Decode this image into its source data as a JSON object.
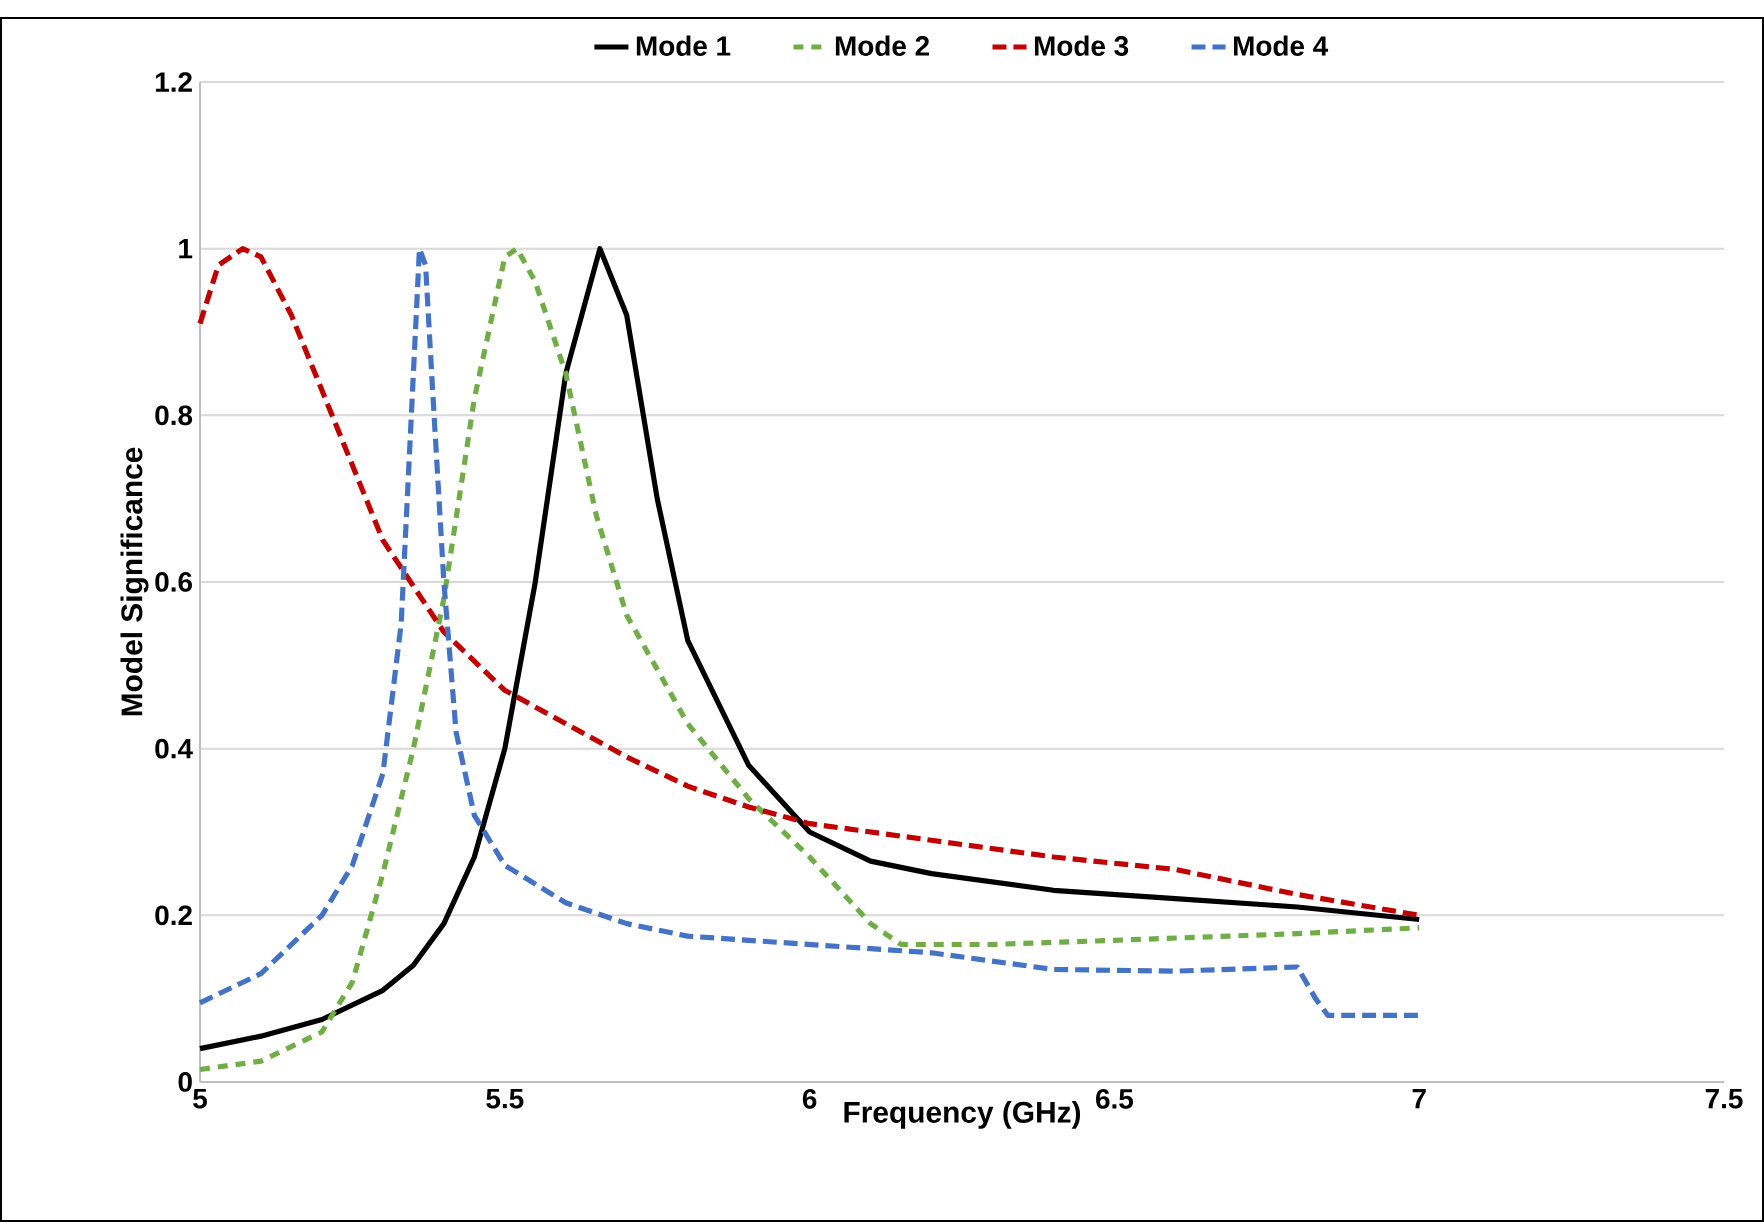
{
  "chart_data": {
    "type": "line",
    "xlabel": "Frequency (GHz)",
    "ylabel": "Model Significance",
    "xlim": [
      5,
      7.5
    ],
    "ylim": [
      0,
      1.2
    ],
    "xticks": [
      5,
      5.5,
      6,
      6.5,
      7,
      7.5
    ],
    "yticks": [
      0,
      0.2,
      0.4,
      0.6,
      0.8,
      1,
      1.2
    ],
    "grid": "y",
    "legend": "top",
    "marker": "none",
    "series": [
      {
        "name": "Mode 1",
        "color": "#000000",
        "line_style": "solid",
        "x": [
          5,
          5.1,
          5.2,
          5.3,
          5.35,
          5.4,
          5.45,
          5.5,
          5.55,
          5.6,
          5.656,
          5.7,
          5.75,
          5.8,
          5.9,
          6.0,
          6.1,
          6.2,
          6.4,
          6.6,
          6.8,
          7
        ],
        "values": [
          0.04,
          0.055,
          0.075,
          0.11,
          0.14,
          0.19,
          0.27,
          0.4,
          0.6,
          0.85,
          1.0,
          0.92,
          0.7,
          0.53,
          0.38,
          0.3,
          0.265,
          0.25,
          0.23,
          0.22,
          0.21,
          0.195
        ]
      },
      {
        "name": "Mode 2",
        "color": "#70ad47",
        "line_style": "dotted",
        "x": [
          5,
          5.1,
          5.2,
          5.25,
          5.3,
          5.35,
          5.4,
          5.45,
          5.5,
          5.52,
          5.55,
          5.6,
          5.65,
          5.7,
          5.8,
          5.9,
          6.0,
          6.1,
          6.15,
          6.3,
          6.5,
          6.8,
          7
        ],
        "values": [
          0.015,
          0.025,
          0.06,
          0.12,
          0.25,
          0.4,
          0.58,
          0.82,
          0.99,
          1.0,
          0.96,
          0.85,
          0.68,
          0.56,
          0.43,
          0.34,
          0.27,
          0.19,
          0.165,
          0.165,
          0.17,
          0.178,
          0.185
        ]
      },
      {
        "name": "Mode 3",
        "color": "#c00000",
        "line_style": "dashed",
        "x": [
          5,
          5.03,
          5.07,
          5.1,
          5.15,
          5.2,
          5.3,
          5.4,
          5.5,
          5.6,
          5.7,
          5.8,
          5.9,
          6.0,
          6.2,
          6.4,
          6.6,
          6.8,
          7
        ],
        "values": [
          0.91,
          0.98,
          1.0,
          0.99,
          0.92,
          0.83,
          0.65,
          0.54,
          0.47,
          0.43,
          0.39,
          0.355,
          0.33,
          0.31,
          0.29,
          0.27,
          0.255,
          0.225,
          0.2
        ]
      },
      {
        "name": "Mode 4",
        "color": "#4472c4",
        "line_style": "dashed",
        "x": [
          5,
          5.1,
          5.2,
          5.25,
          5.3,
          5.33,
          5.35,
          5.36,
          5.37,
          5.38,
          5.4,
          5.42,
          5.45,
          5.5,
          5.6,
          5.7,
          5.8,
          6.0,
          6.2,
          6.4,
          6.6,
          6.8,
          6.83,
          6.85,
          7
        ],
        "values": [
          0.095,
          0.13,
          0.2,
          0.26,
          0.37,
          0.55,
          0.85,
          1.0,
          0.98,
          0.85,
          0.6,
          0.42,
          0.32,
          0.26,
          0.215,
          0.19,
          0.175,
          0.165,
          0.155,
          0.135,
          0.133,
          0.138,
          0.1,
          0.08,
          0.08
        ]
      }
    ]
  }
}
